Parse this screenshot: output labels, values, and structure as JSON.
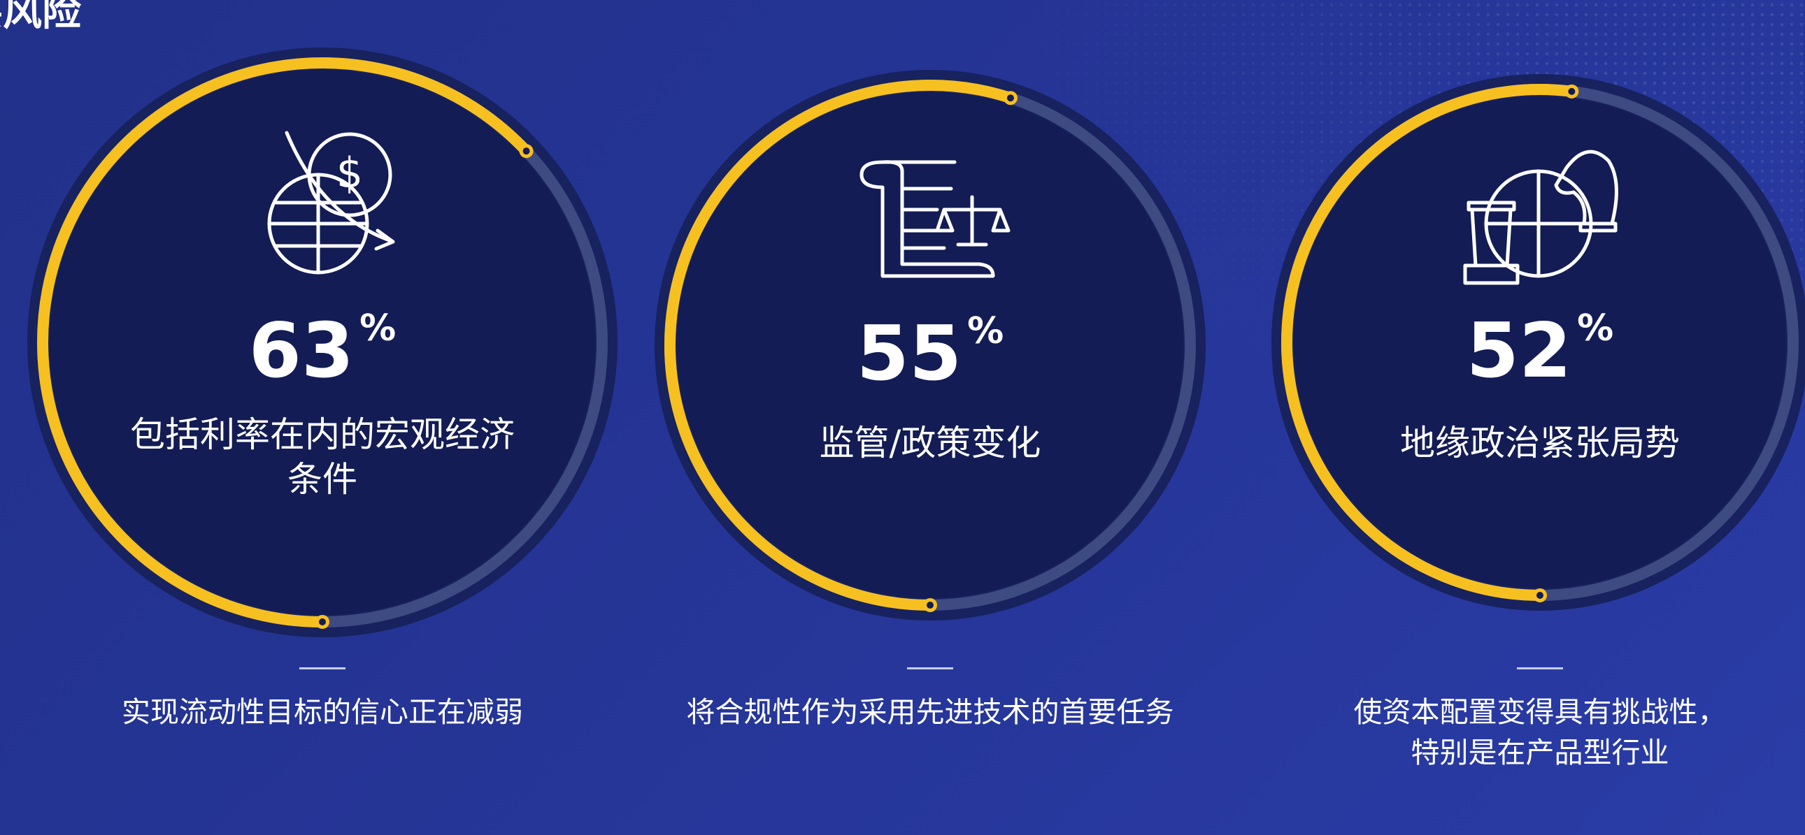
{
  "chart_data": {
    "type": "gauge",
    "title": "要风险",
    "unit": "%",
    "categories": [
      "包括利率在内的宏观经济条件",
      "监管/政策变化",
      "地缘政治紧张局势"
    ],
    "values": [
      63,
      55,
      52
    ],
    "descriptions": [
      "实现流动性目标的信心正在减弱",
      "将合规性作为采用先进技术的首要任务",
      "使资本配置变得具有挑战性，特别是在产品型行业"
    ],
    "ylim": [
      0,
      100
    ],
    "color": "#f7c021",
    "track_color": "#3e4a82"
  }
}
